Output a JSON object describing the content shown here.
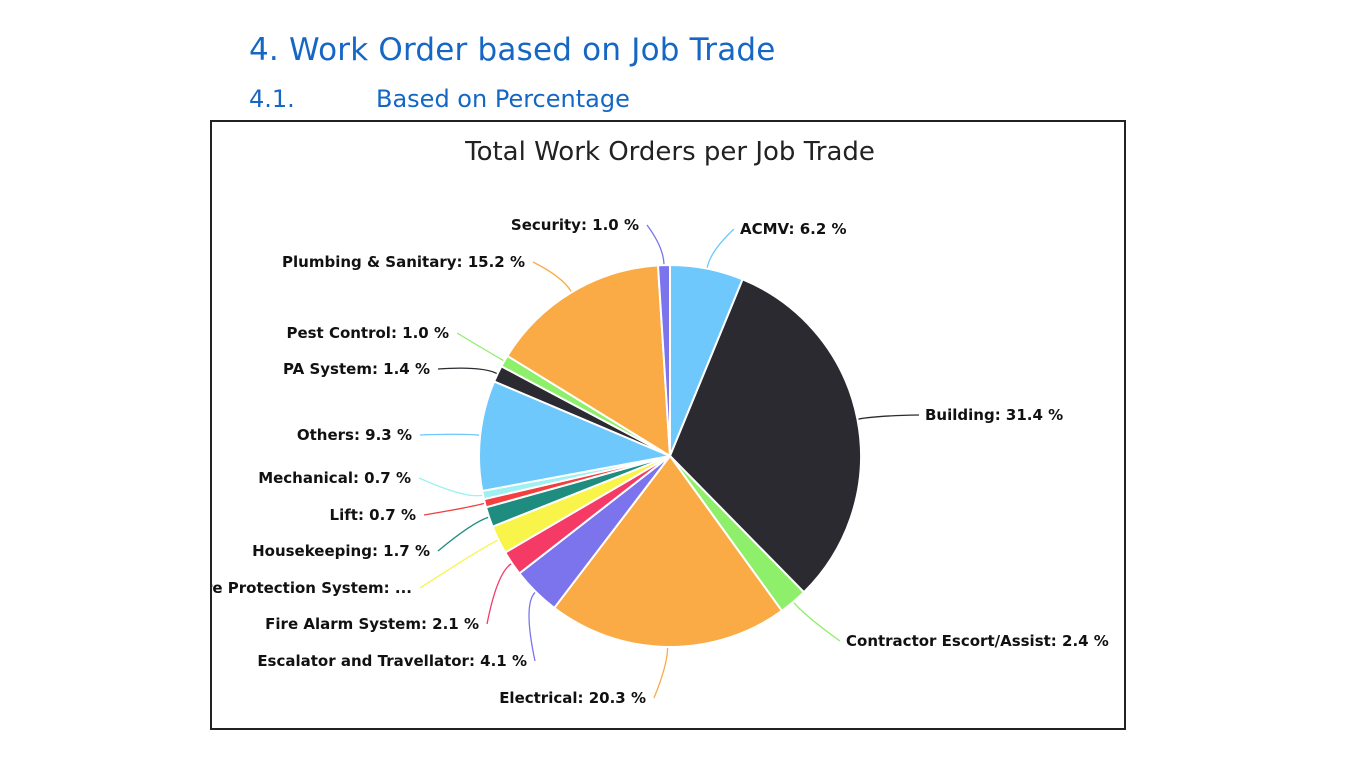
{
  "heading": {
    "section_number": "4.",
    "section_title": "Work Order based on Job Trade",
    "subsection_number": "4.1.",
    "subsection_title": "Based on Percentage"
  },
  "chart_data": {
    "type": "pie",
    "title": "Total Work Orders per Job Trade",
    "unit": "%",
    "slices": [
      {
        "name": "ACMV",
        "value": 6.2,
        "color": "#6ec8fb",
        "label": "ACMV: 6.2 %"
      },
      {
        "name": "Building",
        "value": 31.4,
        "color": "#2b2a30",
        "label": "Building: 31.4 %"
      },
      {
        "name": "Contractor Escort/Assist",
        "value": 2.4,
        "color": "#8ef06a",
        "label": "Contractor Escort/Assist: 2.4 %"
      },
      {
        "name": "Electrical",
        "value": 20.3,
        "color": "#fbab45",
        "label": "Electrical: 20.3 %"
      },
      {
        "name": "Escalator and Travellator",
        "value": 4.1,
        "color": "#7b74ed",
        "label": "Escalator and Travellator: 4.1 %"
      },
      {
        "name": "Fire Alarm System",
        "value": 2.1,
        "color": "#f53a66",
        "label": "Fire Alarm System: 2.1 %"
      },
      {
        "name": "Fire Protection System",
        "value": 2.4,
        "color": "#f8f44a",
        "label": "Fire Protection System: ..."
      },
      {
        "name": "Housekeeping",
        "value": 1.7,
        "color": "#1e8c7f",
        "label": "Housekeeping: 1.7 %"
      },
      {
        "name": "Lift",
        "value": 0.7,
        "color": "#f33f3f",
        "label": "Lift: 0.7 %"
      },
      {
        "name": "Mechanical",
        "value": 0.7,
        "color": "#9ff0f3",
        "label": "Mechanical: 0.7 %"
      },
      {
        "name": "Others",
        "value": 9.3,
        "color": "#6ec8fb",
        "label": "Others: 9.3 %"
      },
      {
        "name": "PA System",
        "value": 1.4,
        "color": "#2b2a30",
        "label": "PA System: 1.4 %"
      },
      {
        "name": "Pest Control",
        "value": 1.0,
        "color": "#8ef06a",
        "label": "Pest Control: 1.0 %"
      },
      {
        "name": "Plumbing & Sanitary",
        "value": 15.2,
        "color": "#fbab45",
        "label": "Plumbing & Sanitary: 15.2 %"
      },
      {
        "name": "Security",
        "value": 1.0,
        "color": "#7b74ed",
        "label": "Security: 1.0 %"
      }
    ]
  }
}
